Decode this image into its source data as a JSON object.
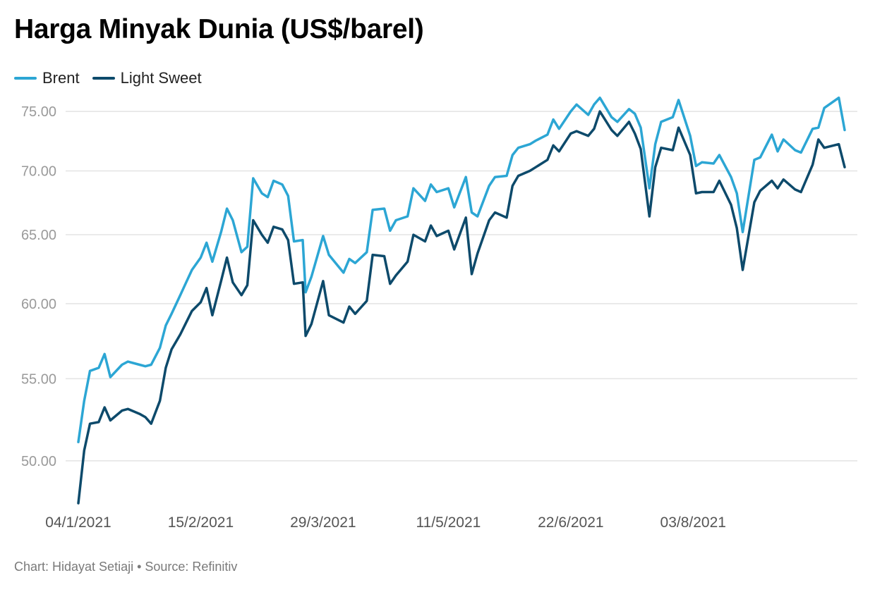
{
  "header": {
    "title": "Harga Minyak Dunia (US$/barel)"
  },
  "footer": {
    "credit": "Chart: Hidayat Setiaji • Source: Refinitiv"
  },
  "colors": {
    "brent": "#2ca6d4",
    "light_sweet": "#0d4a6b",
    "grid": "#e3e3e3"
  },
  "chart_data": {
    "type": "line",
    "title": "Harga Minyak Dunia (US$/barel)",
    "xlabel": "",
    "ylabel": "",
    "y_scale": "log",
    "ylim": [
      47.6,
      77.5
    ],
    "y_ticks": [
      50,
      55,
      60,
      65,
      70,
      75
    ],
    "y_tick_labels": [
      "50.00",
      "55.00",
      "60.00",
      "65.00",
      "70.00",
      "75.00"
    ],
    "x_start": "2021-01-04",
    "x_end": "2021-09-24",
    "x_tick_dates": [
      "2021-01-04",
      "2021-02-15",
      "2021-03-29",
      "2021-05-11",
      "2021-06-22",
      "2021-08-03"
    ],
    "x_tick_labels": [
      "04/1/2021",
      "15/2/2021",
      "29/3/2021",
      "11/5/2021",
      "22/6/2021",
      "03/8/2021"
    ],
    "grid": true,
    "legend": "top-left",
    "series": [
      {
        "name": "Brent",
        "points": [
          [
            "2021-01-04",
            51.1
          ],
          [
            "2021-01-06",
            53.6
          ],
          [
            "2021-01-08",
            55.5
          ],
          [
            "2021-01-11",
            55.7
          ],
          [
            "2021-01-13",
            56.6
          ],
          [
            "2021-01-15",
            55.1
          ],
          [
            "2021-01-19",
            55.9
          ],
          [
            "2021-01-21",
            56.1
          ],
          [
            "2021-01-25",
            55.9
          ],
          [
            "2021-01-27",
            55.8
          ],
          [
            "2021-01-29",
            55.9
          ],
          [
            "2021-02-01",
            57.0
          ],
          [
            "2021-02-03",
            58.5
          ],
          [
            "2021-02-05",
            59.3
          ],
          [
            "2021-02-08",
            60.6
          ],
          [
            "2021-02-10",
            61.5
          ],
          [
            "2021-02-12",
            62.4
          ],
          [
            "2021-02-15",
            63.3
          ],
          [
            "2021-02-17",
            64.4
          ],
          [
            "2021-02-19",
            63.0
          ],
          [
            "2021-02-22",
            65.2
          ],
          [
            "2021-02-24",
            67.0
          ],
          [
            "2021-02-26",
            66.1
          ],
          [
            "2021-03-01",
            63.7
          ],
          [
            "2021-03-03",
            64.1
          ],
          [
            "2021-03-05",
            69.4
          ],
          [
            "2021-03-08",
            68.2
          ],
          [
            "2021-03-10",
            67.9
          ],
          [
            "2021-03-12",
            69.2
          ],
          [
            "2021-03-15",
            68.9
          ],
          [
            "2021-03-17",
            68.0
          ],
          [
            "2021-03-19",
            64.5
          ],
          [
            "2021-03-22",
            64.6
          ],
          [
            "2021-03-23",
            60.8
          ],
          [
            "2021-03-25",
            61.9
          ],
          [
            "2021-03-29",
            64.9
          ],
          [
            "2021-03-31",
            63.5
          ],
          [
            "2021-04-05",
            62.2
          ],
          [
            "2021-04-07",
            63.2
          ],
          [
            "2021-04-09",
            62.9
          ],
          [
            "2021-04-13",
            63.7
          ],
          [
            "2021-04-15",
            66.9
          ],
          [
            "2021-04-19",
            67.0
          ],
          [
            "2021-04-21",
            65.3
          ],
          [
            "2021-04-23",
            66.1
          ],
          [
            "2021-04-27",
            66.4
          ],
          [
            "2021-04-29",
            68.6
          ],
          [
            "2021-05-03",
            67.6
          ],
          [
            "2021-05-05",
            68.9
          ],
          [
            "2021-05-07",
            68.3
          ],
          [
            "2021-05-11",
            68.6
          ],
          [
            "2021-05-13",
            67.1
          ],
          [
            "2021-05-17",
            69.5
          ],
          [
            "2021-05-19",
            66.7
          ],
          [
            "2021-05-21",
            66.4
          ],
          [
            "2021-05-25",
            68.8
          ],
          [
            "2021-05-27",
            69.5
          ],
          [
            "2021-05-31",
            69.6
          ],
          [
            "2021-06-02",
            71.3
          ],
          [
            "2021-06-04",
            71.9
          ],
          [
            "2021-06-08",
            72.2
          ],
          [
            "2021-06-10",
            72.5
          ],
          [
            "2021-06-14",
            73.0
          ],
          [
            "2021-06-16",
            74.3
          ],
          [
            "2021-06-18",
            73.5
          ],
          [
            "2021-06-22",
            75.0
          ],
          [
            "2021-06-24",
            75.6
          ],
          [
            "2021-06-28",
            74.7
          ],
          [
            "2021-06-30",
            75.6
          ],
          [
            "2021-07-02",
            76.2
          ],
          [
            "2021-07-06",
            74.5
          ],
          [
            "2021-07-08",
            74.1
          ],
          [
            "2021-07-12",
            75.2
          ],
          [
            "2021-07-14",
            74.8
          ],
          [
            "2021-07-16",
            73.6
          ],
          [
            "2021-07-19",
            68.6
          ],
          [
            "2021-07-21",
            72.2
          ],
          [
            "2021-07-23",
            74.1
          ],
          [
            "2021-07-27",
            74.5
          ],
          [
            "2021-07-29",
            76.0
          ],
          [
            "2021-08-02",
            72.9
          ],
          [
            "2021-08-04",
            70.4
          ],
          [
            "2021-08-06",
            70.7
          ],
          [
            "2021-08-10",
            70.6
          ],
          [
            "2021-08-12",
            71.3
          ],
          [
            "2021-08-16",
            69.5
          ],
          [
            "2021-08-18",
            68.2
          ],
          [
            "2021-08-20",
            65.2
          ],
          [
            "2021-08-24",
            70.9
          ],
          [
            "2021-08-26",
            71.1
          ],
          [
            "2021-08-30",
            73.0
          ],
          [
            "2021-09-01",
            71.6
          ],
          [
            "2021-09-03",
            72.6
          ],
          [
            "2021-09-07",
            71.7
          ],
          [
            "2021-09-09",
            71.5
          ],
          [
            "2021-09-13",
            73.5
          ],
          [
            "2021-09-15",
            73.6
          ],
          [
            "2021-09-17",
            75.3
          ],
          [
            "2021-09-22",
            76.2
          ],
          [
            "2021-09-24",
            73.4
          ]
        ]
      },
      {
        "name": "Light Sweet",
        "points": [
          [
            "2021-01-04",
            47.6
          ],
          [
            "2021-01-06",
            50.6
          ],
          [
            "2021-01-08",
            52.2
          ],
          [
            "2021-01-11",
            52.3
          ],
          [
            "2021-01-13",
            53.2
          ],
          [
            "2021-01-15",
            52.4
          ],
          [
            "2021-01-19",
            53.0
          ],
          [
            "2021-01-21",
            53.1
          ],
          [
            "2021-01-25",
            52.8
          ],
          [
            "2021-01-27",
            52.6
          ],
          [
            "2021-01-29",
            52.2
          ],
          [
            "2021-02-01",
            53.6
          ],
          [
            "2021-02-03",
            55.7
          ],
          [
            "2021-02-05",
            56.9
          ],
          [
            "2021-02-08",
            57.9
          ],
          [
            "2021-02-10",
            58.7
          ],
          [
            "2021-02-12",
            59.5
          ],
          [
            "2021-02-15",
            60.1
          ],
          [
            "2021-02-17",
            61.1
          ],
          [
            "2021-02-19",
            59.2
          ],
          [
            "2021-02-22",
            61.6
          ],
          [
            "2021-02-24",
            63.3
          ],
          [
            "2021-02-26",
            61.5
          ],
          [
            "2021-03-01",
            60.6
          ],
          [
            "2021-03-03",
            61.3
          ],
          [
            "2021-03-05",
            66.1
          ],
          [
            "2021-03-08",
            65.0
          ],
          [
            "2021-03-10",
            64.4
          ],
          [
            "2021-03-12",
            65.6
          ],
          [
            "2021-03-15",
            65.4
          ],
          [
            "2021-03-17",
            64.6
          ],
          [
            "2021-03-19",
            61.4
          ],
          [
            "2021-03-22",
            61.5
          ],
          [
            "2021-03-23",
            57.8
          ],
          [
            "2021-03-25",
            58.6
          ],
          [
            "2021-03-29",
            61.6
          ],
          [
            "2021-03-31",
            59.2
          ],
          [
            "2021-04-05",
            58.7
          ],
          [
            "2021-04-07",
            59.8
          ],
          [
            "2021-04-09",
            59.3
          ],
          [
            "2021-04-13",
            60.2
          ],
          [
            "2021-04-15",
            63.5
          ],
          [
            "2021-04-19",
            63.4
          ],
          [
            "2021-04-21",
            61.4
          ],
          [
            "2021-04-23",
            62.0
          ],
          [
            "2021-04-27",
            63.0
          ],
          [
            "2021-04-29",
            65.0
          ],
          [
            "2021-05-03",
            64.5
          ],
          [
            "2021-05-05",
            65.7
          ],
          [
            "2021-05-07",
            64.9
          ],
          [
            "2021-05-11",
            65.3
          ],
          [
            "2021-05-13",
            63.9
          ],
          [
            "2021-05-17",
            66.3
          ],
          [
            "2021-05-19",
            62.1
          ],
          [
            "2021-05-21",
            63.6
          ],
          [
            "2021-05-25",
            66.1
          ],
          [
            "2021-05-27",
            66.7
          ],
          [
            "2021-05-31",
            66.3
          ],
          [
            "2021-06-02",
            68.8
          ],
          [
            "2021-06-04",
            69.6
          ],
          [
            "2021-06-08",
            70.0
          ],
          [
            "2021-06-10",
            70.3
          ],
          [
            "2021-06-14",
            70.9
          ],
          [
            "2021-06-16",
            72.1
          ],
          [
            "2021-06-18",
            71.6
          ],
          [
            "2021-06-22",
            73.1
          ],
          [
            "2021-06-24",
            73.3
          ],
          [
            "2021-06-28",
            72.9
          ],
          [
            "2021-06-30",
            73.5
          ],
          [
            "2021-07-02",
            75.0
          ],
          [
            "2021-07-06",
            73.4
          ],
          [
            "2021-07-08",
            72.9
          ],
          [
            "2021-07-12",
            74.1
          ],
          [
            "2021-07-14",
            73.1
          ],
          [
            "2021-07-16",
            71.8
          ],
          [
            "2021-07-19",
            66.4
          ],
          [
            "2021-07-21",
            70.3
          ],
          [
            "2021-07-23",
            71.9
          ],
          [
            "2021-07-27",
            71.7
          ],
          [
            "2021-07-29",
            73.6
          ],
          [
            "2021-08-02",
            71.3
          ],
          [
            "2021-08-04",
            68.2
          ],
          [
            "2021-08-06",
            68.3
          ],
          [
            "2021-08-10",
            68.3
          ],
          [
            "2021-08-12",
            69.2
          ],
          [
            "2021-08-16",
            67.3
          ],
          [
            "2021-08-18",
            65.5
          ],
          [
            "2021-08-20",
            62.4
          ],
          [
            "2021-08-24",
            67.5
          ],
          [
            "2021-08-26",
            68.4
          ],
          [
            "2021-08-30",
            69.2
          ],
          [
            "2021-09-01",
            68.6
          ],
          [
            "2021-09-03",
            69.3
          ],
          [
            "2021-09-07",
            68.5
          ],
          [
            "2021-09-09",
            68.3
          ],
          [
            "2021-09-13",
            70.5
          ],
          [
            "2021-09-15",
            72.6
          ],
          [
            "2021-09-17",
            71.9
          ],
          [
            "2021-09-22",
            72.2
          ],
          [
            "2021-09-24",
            70.3
          ]
        ]
      }
    ]
  }
}
